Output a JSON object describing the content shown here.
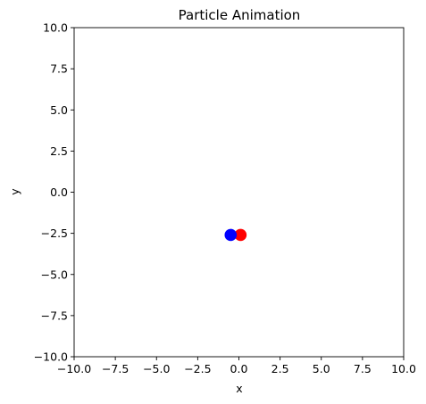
{
  "chart_data": {
    "type": "scatter",
    "title": "Particle Animation",
    "xlabel": "x",
    "ylabel": "y",
    "xlim": [
      -10,
      10
    ],
    "ylim": [
      -10,
      10
    ],
    "xticks": [
      -10,
      -7.5,
      -5,
      -2.5,
      0,
      2.5,
      5,
      7.5,
      10
    ],
    "yticks": [
      -10,
      -7.5,
      -5,
      -2.5,
      0,
      2.5,
      5,
      7.5,
      10
    ],
    "xtick_labels": [
      "−10.0",
      "−7.5",
      "−5.0",
      "−2.5",
      "0.0",
      "2.5",
      "5.0",
      "7.5",
      "10.0"
    ],
    "ytick_labels": [
      "−10.0",
      "−7.5",
      "−5.0",
      "−2.5",
      "0.0",
      "2.5",
      "5.0",
      "7.5",
      "10.0"
    ],
    "grid": false,
    "points": [
      {
        "x": 0.1,
        "y": -2.6,
        "color": "#ff0000"
      },
      {
        "x": -0.5,
        "y": -2.6,
        "color": "#0000ff"
      }
    ]
  }
}
